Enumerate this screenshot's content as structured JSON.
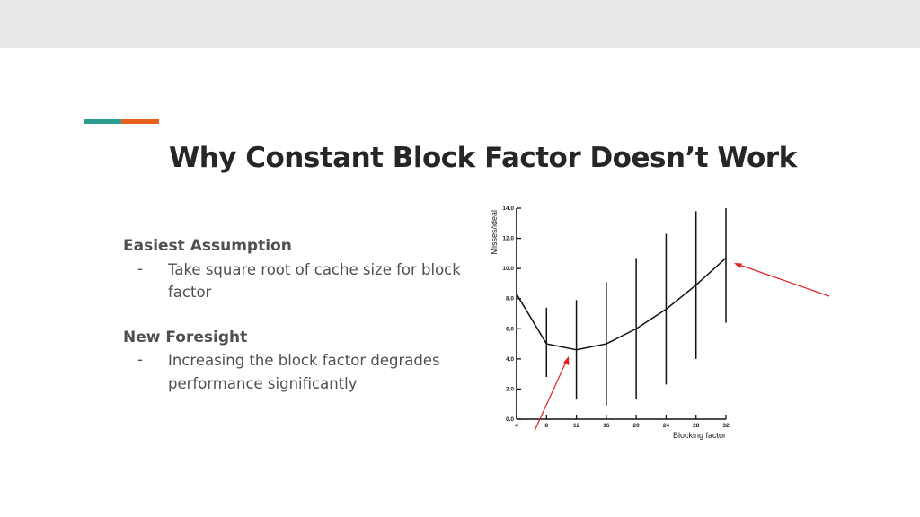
{
  "slide": {
    "title": "Why Constant Block Factor Doesn’t Work",
    "colors": {
      "accent_teal": "#2a9d8f",
      "accent_orange": "#e4621b",
      "annotation_arrow": "#e02020"
    },
    "sections": [
      {
        "heading": "Easiest Assumption",
        "bullets": [
          {
            "dash": "-",
            "text": "Take square root of cache size for block factor"
          }
        ]
      },
      {
        "heading": "New Foresight",
        "bullets": [
          {
            "dash": "-",
            "text": "Increasing the block factor degrades performance significantly"
          }
        ]
      }
    ]
  },
  "chart_data": {
    "type": "line",
    "xlabel": "Blocking factor",
    "ylabel": "Misses/ideal",
    "x": [
      4,
      8,
      12,
      16,
      20,
      24,
      28,
      32
    ],
    "xticks": [
      "4",
      "8",
      "12",
      "16",
      "20",
      "24",
      "28",
      "32"
    ],
    "yticks": [
      "0.0",
      "2.0",
      "4.0",
      "6.0",
      "8.0",
      "10.0",
      "12.0",
      "14.0"
    ],
    "xlim": [
      4,
      32
    ],
    "ylim": [
      0,
      14
    ],
    "series": [
      {
        "values": [
          8.3,
          5.0,
          4.6,
          5.0,
          6.0,
          7.3,
          8.9,
          10.7
        ],
        "error_low": [
          null,
          2.8,
          1.3,
          0.9,
          1.3,
          2.3,
          4.0,
          6.4
        ],
        "error_high": [
          null,
          7.4,
          7.9,
          9.1,
          10.7,
          12.3,
          13.8,
          14.0
        ]
      }
    ],
    "grid": false
  }
}
